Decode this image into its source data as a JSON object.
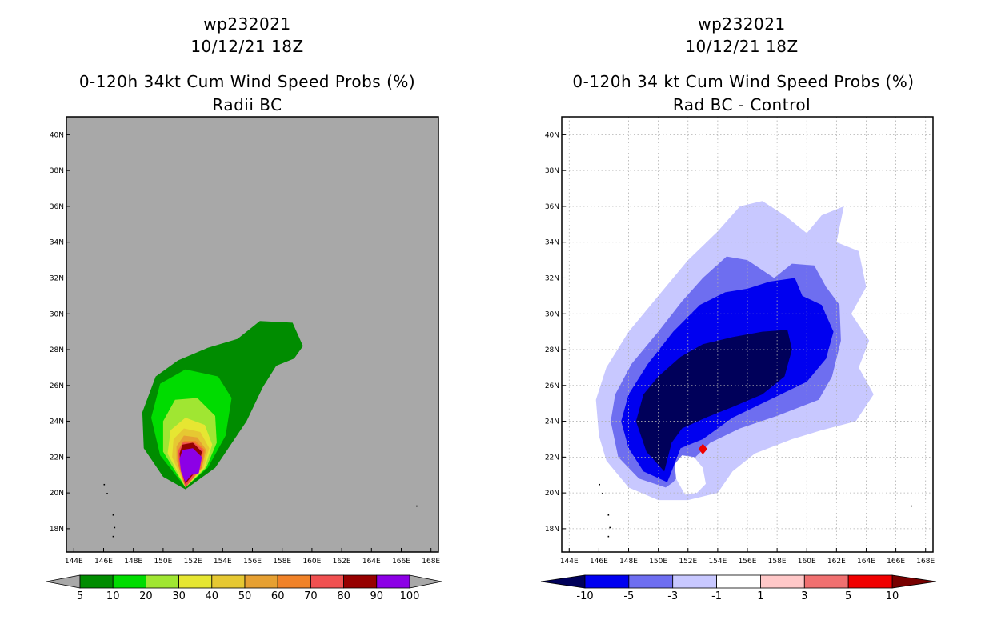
{
  "chart_data": [
    {
      "type": "heatmap",
      "id": "left",
      "title_line1": "wp232021",
      "title_line2": "10/12/21 18Z",
      "title_line3": "0-120h 34kt Cum Wind Speed Probs (%)",
      "title_line4": "Radii BC",
      "xlim": [
        143.5,
        168.5
      ],
      "ylim": [
        16.7,
        41
      ],
      "x_ticks": [
        "144E",
        "146E",
        "148E",
        "150E",
        "152E",
        "154E",
        "156E",
        "158E",
        "160E",
        "162E",
        "164E",
        "166E",
        "168E"
      ],
      "y_ticks": [
        "18N",
        "20N",
        "22N",
        "24N",
        "26N",
        "28N",
        "30N",
        "32N",
        "34N",
        "36N",
        "38N",
        "40N"
      ],
      "background": "#a8a8a8",
      "grid": false,
      "levels": [
        5,
        10,
        20,
        30,
        40,
        50,
        60,
        70,
        80,
        90,
        100
      ],
      "level_labels": [
        "5",
        "10",
        "20",
        "30",
        "40",
        "50",
        "60",
        "70",
        "80",
        "90",
        "100"
      ],
      "colors": [
        "#008c00",
        "#00dc00",
        "#a0e632",
        "#e6e632",
        "#e6c832",
        "#e6a032",
        "#f08228",
        "#f05050",
        "#960000",
        "#8c00e6"
      ],
      "center": [
        151.8,
        21.7
      ],
      "contours": [
        {
          "level": 5,
          "color": "#008c00",
          "points": [
            [
              151.5,
              20.2
            ],
            [
              153.5,
              21.4
            ],
            [
              155.6,
              24.0
            ],
            [
              156.7,
              25.9
            ],
            [
              157.6,
              27.1
            ],
            [
              158.8,
              27.5
            ],
            [
              159.4,
              28.2
            ],
            [
              158.7,
              29.5
            ],
            [
              156.5,
              29.6
            ],
            [
              155.0,
              28.6
            ],
            [
              153.0,
              28.1
            ],
            [
              151.0,
              27.4
            ],
            [
              149.5,
              26.5
            ],
            [
              148.6,
              24.5
            ],
            [
              148.7,
              22.5
            ],
            [
              150.0,
              20.9
            ]
          ]
        },
        {
          "level": 10,
          "color": "#00dc00",
          "points": [
            [
              151.5,
              20.3
            ],
            [
              153.0,
              21.4
            ],
            [
              154.2,
              23.2
            ],
            [
              154.6,
              25.3
            ],
            [
              153.7,
              26.5
            ],
            [
              151.5,
              26.9
            ],
            [
              149.8,
              26.1
            ],
            [
              149.2,
              24.2
            ],
            [
              149.8,
              22.1
            ]
          ]
        },
        {
          "level": 20,
          "color": "#a0e632",
          "points": [
            [
              151.5,
              20.3
            ],
            [
              152.9,
              21.4
            ],
            [
              153.6,
              22.8
            ],
            [
              153.5,
              24.3
            ],
            [
              152.3,
              25.3
            ],
            [
              150.8,
              25.2
            ],
            [
              150.0,
              24.0
            ],
            [
              150.0,
              22.3
            ]
          ]
        },
        {
          "level": 30,
          "color": "#e6e632",
          "points": [
            [
              151.5,
              20.3
            ],
            [
              152.8,
              21.4
            ],
            [
              153.3,
              22.7
            ],
            [
              152.8,
              23.8
            ],
            [
              151.5,
              24.2
            ],
            [
              150.5,
              23.5
            ],
            [
              150.3,
              22.2
            ]
          ]
        },
        {
          "level": 40,
          "color": "#e6c832",
          "points": [
            [
              151.5,
              20.3
            ],
            [
              152.7,
              21.4
            ],
            [
              153.1,
              22.5
            ],
            [
              152.5,
              23.4
            ],
            [
              151.4,
              23.6
            ],
            [
              150.7,
              23.0
            ],
            [
              150.6,
              22.0
            ]
          ]
        },
        {
          "level": 50,
          "color": "#e6a032",
          "points": [
            [
              151.5,
              20.3
            ],
            [
              152.6,
              21.4
            ],
            [
              152.9,
              22.4
            ],
            [
              152.3,
              23.1
            ],
            [
              151.4,
              23.2
            ],
            [
              150.9,
              22.6
            ],
            [
              150.9,
              21.8
            ]
          ]
        },
        {
          "level": 60,
          "color": "#f08228",
          "points": [
            [
              151.5,
              20.3
            ],
            [
              152.6,
              21.4
            ],
            [
              152.8,
              22.4
            ],
            [
              152.2,
              22.9
            ],
            [
              151.4,
              22.9
            ],
            [
              151.0,
              22.4
            ],
            [
              151.0,
              21.6
            ]
          ]
        },
        {
          "level": 70,
          "color": "#f05050",
          "points": [
            [
              151.5,
              20.3
            ],
            [
              152.5,
              21.4
            ],
            [
              152.7,
              22.4
            ],
            [
              152.1,
              22.8
            ],
            [
              151.3,
              22.8
            ],
            [
              151.0,
              22.3
            ],
            [
              151.1,
              21.5
            ]
          ]
        },
        {
          "level": 80,
          "color": "#960000",
          "points": [
            [
              151.5,
              20.5
            ],
            [
              152.4,
              21.4
            ],
            [
              152.6,
              22.3
            ],
            [
              152.0,
              22.8
            ],
            [
              151.3,
              22.7
            ],
            [
              151.1,
              22.2
            ],
            [
              151.2,
              21.3
            ]
          ]
        },
        {
          "level": 90,
          "color": "#8c00e6",
          "points": [
            [
              151.5,
              20.6
            ],
            [
              151.9,
              21.0
            ],
            [
              152.4,
              21.1
            ],
            [
              152.6,
              22.0
            ],
            [
              152.0,
              22.5
            ],
            [
              151.3,
              22.4
            ],
            [
              151.1,
              21.9
            ],
            [
              151.2,
              21.2
            ]
          ]
        }
      ]
    },
    {
      "type": "heatmap",
      "id": "right",
      "title_line1": "wp232021",
      "title_line2": "10/12/21 18Z",
      "title_line3": "0-120h 34 kt Cum Wind Speed Probs (%)",
      "title_line4": "Rad BC - Control",
      "xlim": [
        143.5,
        168.5
      ],
      "ylim": [
        16.7,
        41
      ],
      "x_ticks": [
        "144E",
        "146E",
        "148E",
        "150E",
        "152E",
        "154E",
        "156E",
        "158E",
        "160E",
        "162E",
        "164E",
        "166E",
        "168E"
      ],
      "y_ticks": [
        "18N",
        "20N",
        "22N",
        "24N",
        "26N",
        "28N",
        "30N",
        "32N",
        "34N",
        "36N",
        "38N",
        "40N"
      ],
      "background": "#ffffff",
      "grid": true,
      "levels": [
        -10,
        -5,
        -3,
        -1,
        1,
        3,
        5,
        10
      ],
      "level_labels": [
        "-10",
        "-5",
        "-3",
        "-1",
        "1",
        "3",
        "5",
        "10"
      ],
      "colors": [
        "#00005a",
        "#0000f0",
        "#6e6ef0",
        "#c8c8ff",
        "#ffffff",
        "#ffc8c8",
        "#f07070",
        "#f00000",
        "#780000"
      ],
      "contours": [
        {
          "level": -1,
          "color": "#c8c8ff",
          "points": [
            [
              150.0,
              19.6
            ],
            [
              148.0,
              20.3
            ],
            [
              146.5,
              21.8
            ],
            [
              146.0,
              23.2
            ],
            [
              145.8,
              25.2
            ],
            [
              146.5,
              27.0
            ],
            [
              148.0,
              29.0
            ],
            [
              150.0,
              31.0
            ],
            [
              152.0,
              33.0
            ],
            [
              154.0,
              34.6
            ],
            [
              155.5,
              36.0
            ],
            [
              157.0,
              36.3
            ],
            [
              158.5,
              35.5
            ],
            [
              160.0,
              34.5
            ],
            [
              161.0,
              35.5
            ],
            [
              162.5,
              36.0
            ],
            [
              162.0,
              34.0
            ],
            [
              163.5,
              33.5
            ],
            [
              164.0,
              31.5
            ],
            [
              163.0,
              30.0
            ],
            [
              164.2,
              28.5
            ],
            [
              163.5,
              27.0
            ],
            [
              164.5,
              25.5
            ],
            [
              163.3,
              24.0
            ],
            [
              161.0,
              23.5
            ],
            [
              159.0,
              23.0
            ],
            [
              156.5,
              22.2
            ],
            [
              155.0,
              21.2
            ],
            [
              154.0,
              20.0
            ],
            [
              152.0,
              19.6
            ]
          ]
        },
        {
          "level": -3,
          "color": "#6e6ef0",
          "points": [
            [
              150.5,
              20.3
            ],
            [
              148.7,
              20.8
            ],
            [
              147.3,
              22.0
            ],
            [
              146.8,
              24.0
            ],
            [
              147.1,
              25.5
            ],
            [
              148.2,
              27.2
            ],
            [
              150.0,
              29.0
            ],
            [
              151.6,
              30.7
            ],
            [
              153.0,
              32.0
            ],
            [
              154.6,
              33.2
            ],
            [
              156.0,
              33.0
            ],
            [
              157.8,
              32.0
            ],
            [
              159.0,
              32.8
            ],
            [
              160.5,
              32.7
            ],
            [
              161.3,
              31.5
            ],
            [
              162.2,
              30.5
            ],
            [
              162.3,
              28.5
            ],
            [
              161.7,
              26.5
            ],
            [
              160.8,
              25.2
            ],
            [
              158.0,
              24.3
            ],
            [
              155.5,
              23.6
            ],
            [
              153.5,
              22.8
            ],
            [
              152.0,
              21.6
            ],
            [
              151.0,
              20.6
            ]
          ]
        },
        {
          "level": -5,
          "color": "#0000f0",
          "points": [
            [
              150.6,
              20.6
            ],
            [
              149.0,
              21.2
            ],
            [
              148.0,
              22.5
            ],
            [
              147.5,
              24.0
            ],
            [
              148.0,
              25.5
            ],
            [
              149.3,
              27.2
            ],
            [
              151.0,
              29.0
            ],
            [
              152.8,
              30.5
            ],
            [
              154.5,
              31.2
            ],
            [
              156.0,
              31.4
            ],
            [
              157.5,
              31.8
            ],
            [
              159.2,
              32.0
            ],
            [
              159.7,
              31.0
            ],
            [
              161.0,
              30.5
            ],
            [
              161.8,
              29.0
            ],
            [
              161.3,
              27.5
            ],
            [
              160.0,
              26.2
            ],
            [
              157.5,
              25.2
            ],
            [
              155.0,
              24.2
            ],
            [
              153.0,
              23.0
            ],
            [
              151.5,
              22.5
            ],
            [
              150.8,
              21.0
            ]
          ]
        },
        {
          "level": -10,
          "color": "#00005a",
          "points": [
            [
              150.4,
              21.2
            ],
            [
              149.2,
              22.3
            ],
            [
              148.5,
              24.0
            ],
            [
              149.0,
              25.5
            ],
            [
              150.0,
              26.5
            ],
            [
              151.5,
              27.6
            ],
            [
              153.0,
              28.3
            ],
            [
              155.0,
              28.7
            ],
            [
              157.0,
              29.0
            ],
            [
              158.7,
              29.1
            ],
            [
              159.0,
              28.0
            ],
            [
              158.5,
              26.5
            ],
            [
              157.0,
              25.5
            ],
            [
              155.0,
              24.8
            ],
            [
              153.2,
              24.2
            ],
            [
              151.6,
              23.6
            ],
            [
              150.9,
              22.8
            ]
          ]
        },
        {
          "level": 1,
          "color": "#ffffff",
          "points": [
            [
              151.8,
              19.9
            ],
            [
              151.2,
              20.8
            ],
            [
              151.1,
              21.6
            ],
            [
              151.6,
              22.1
            ],
            [
              152.4,
              22.0
            ],
            [
              153.0,
              21.4
            ],
            [
              153.2,
              20.5
            ],
            [
              152.6,
              20.0
            ]
          ]
        },
        {
          "level": 5,
          "color": "#f00000",
          "points": [
            [
              153.0,
              22.15
            ],
            [
              153.3,
              22.45
            ],
            [
              153.0,
              22.75
            ],
            [
              152.7,
              22.45
            ]
          ]
        }
      ]
    }
  ]
}
